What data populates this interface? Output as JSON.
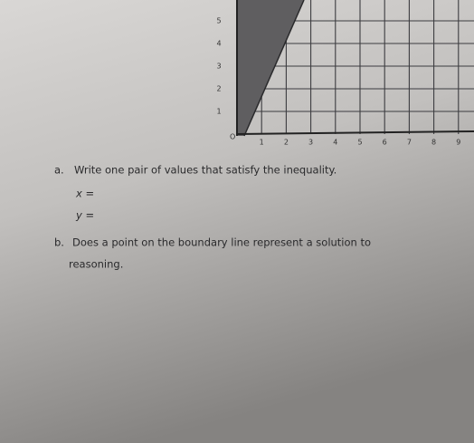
{
  "graph": {
    "origin": "O",
    "x_labels": [
      "1",
      "2",
      "3",
      "4",
      "5",
      "6",
      "7",
      "8",
      "9"
    ],
    "y_labels": [
      "1",
      "2",
      "3",
      "4",
      "5"
    ]
  },
  "questions": [
    {
      "letter": "a.",
      "text": "Write one pair of values that satisfy the inequality.",
      "answers": [
        "x =",
        "y ="
      ]
    },
    {
      "letter": "b.",
      "text": "Does a point on the boundary line represent a solution to",
      "continuation": "reasoning."
    }
  ]
}
